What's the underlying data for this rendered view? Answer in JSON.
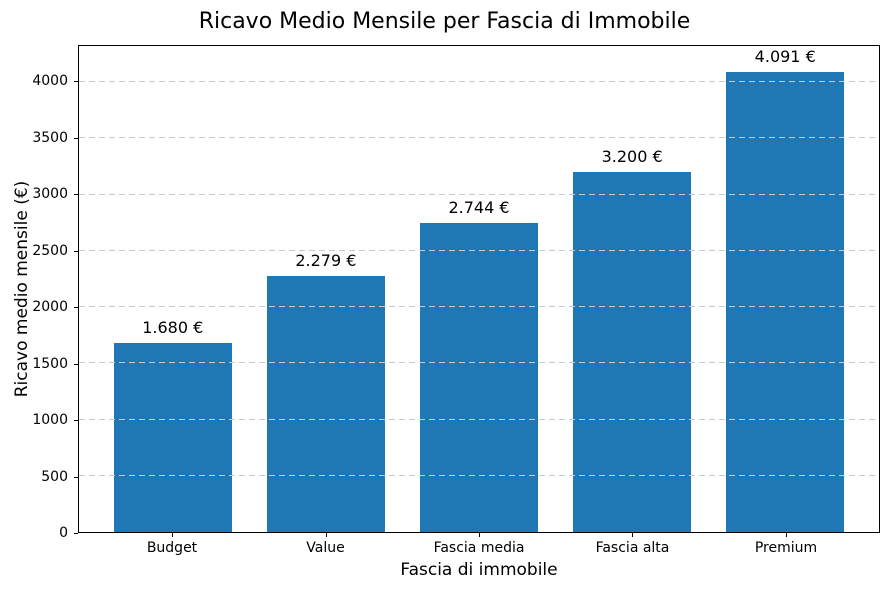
{
  "chart_data": {
    "type": "bar",
    "title": "Ricavo Medio Mensile per Fascia di Immobile",
    "xlabel": "Fascia di immobile",
    "ylabel": "Ricavo medio mensile (€)",
    "categories": [
      "Budget",
      "Value",
      "Fascia media",
      "Fascia alta",
      "Premium"
    ],
    "values": [
      1680,
      2279,
      2744,
      3200,
      4091
    ],
    "bar_labels": [
      "1.680 €",
      "2.279 €",
      "2.744 €",
      "3.200 €",
      "4.091 €"
    ],
    "yticks": [
      0,
      500,
      1000,
      1500,
      2000,
      2500,
      3000,
      3500,
      4000
    ],
    "ylim": [
      0,
      4320
    ],
    "grid": {
      "axis": "y",
      "style": "dashed",
      "over_bars": true
    },
    "legend_position": "none",
    "colors": {
      "bar": "#1f77b4",
      "grid": "#c9c9c9",
      "text": "#000000",
      "spine": "#000000",
      "background": "#ffffff"
    }
  }
}
